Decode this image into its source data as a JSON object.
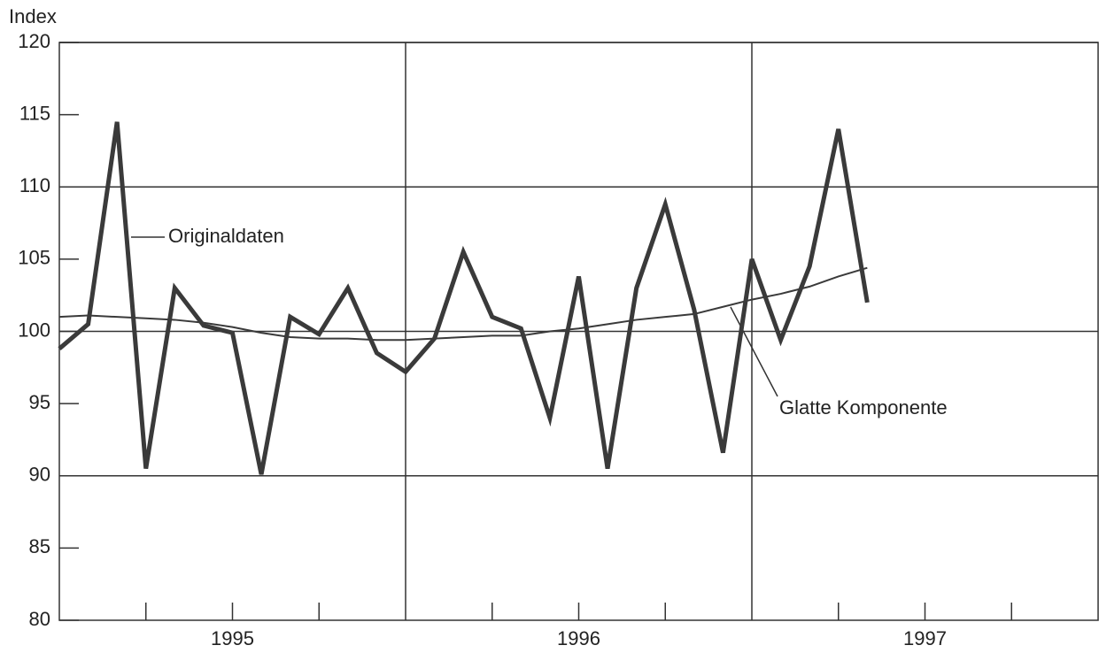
{
  "chart_data": {
    "type": "line",
    "y_label": "Index",
    "x": [
      1994.5,
      1994.5833,
      1994.6667,
      1994.75,
      1994.8333,
      1994.9167,
      1995,
      1995.0833,
      1995.1667,
      1995.25,
      1995.3333,
      1995.4167,
      1995.5,
      1995.5833,
      1995.6667,
      1995.75,
      1995.8333,
      1995.9167,
      1996,
      1996.0833,
      1996.1667,
      1996.25,
      1996.3333,
      1996.4167,
      1996.5,
      1996.5833,
      1996.6667,
      1996.75,
      1996.8333
    ],
    "series": [
      {
        "name": "Originaldaten",
        "color": "#3a3a3a",
        "width": 5,
        "values": [
          98.8,
          100.5,
          114.5,
          90.5,
          103,
          100.4,
          99.9,
          90.1,
          101,
          99.8,
          103,
          98.5,
          97.2,
          99.5,
          105.5,
          101,
          100.2,
          94,
          103.8,
          90.5,
          103,
          108.8,
          101.5,
          91.6,
          105,
          99.4,
          104.5,
          114,
          102
        ]
      },
      {
        "name": "Glatte Komponente",
        "color": "#3a3a3a",
        "width": 2,
        "values": [
          101,
          101.1,
          101,
          100.9,
          100.8,
          100.6,
          100.3,
          99.9,
          99.6,
          99.5,
          99.5,
          99.4,
          99.4,
          99.5,
          99.6,
          99.7,
          99.7,
          100,
          100.2,
          100.5,
          100.8,
          101,
          101.2,
          101.7,
          102.2,
          102.6,
          103.1,
          103.8,
          104.4
        ]
      }
    ],
    "xlim": [
      1994.5,
      1997.5
    ],
    "xticks": [
      1995,
      1996,
      1997
    ],
    "xminor_ticks": [
      1994.75,
      1995.25,
      1995.75,
      1996.25,
      1996.75,
      1997.25
    ],
    "xgrid": [
      1995.5,
      1996.5
    ],
    "ylim": [
      80,
      120
    ],
    "yticks": [
      80,
      85,
      90,
      95,
      100,
      105,
      110,
      115,
      120
    ],
    "ygrid": [
      90,
      100,
      110,
      120
    ]
  }
}
